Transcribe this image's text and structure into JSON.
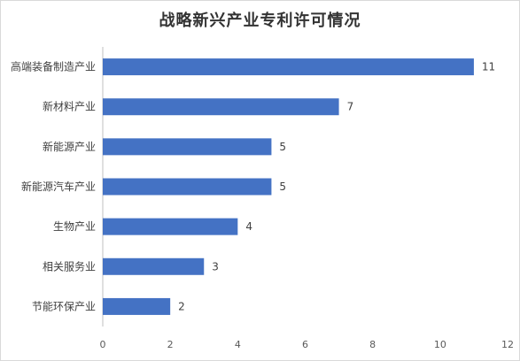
{
  "chart_data": {
    "type": "bar",
    "orientation": "horizontal",
    "title": "战略新兴产业专利许可情况",
    "categories": [
      "高端装备制造产业",
      "新材料产业",
      "新能源产业",
      "新能源汽车产业",
      "生物产业",
      "相关服务业",
      "节能环保产业"
    ],
    "values": [
      11,
      7,
      5,
      5,
      4,
      3,
      2
    ],
    "xlim": [
      0,
      12
    ],
    "x_ticks": [
      0,
      2,
      4,
      6,
      8,
      10,
      12
    ],
    "xlabel": "",
    "ylabel": "",
    "grid": false,
    "legend": "none",
    "data_labels": true,
    "bar_color": "#4472C4"
  }
}
